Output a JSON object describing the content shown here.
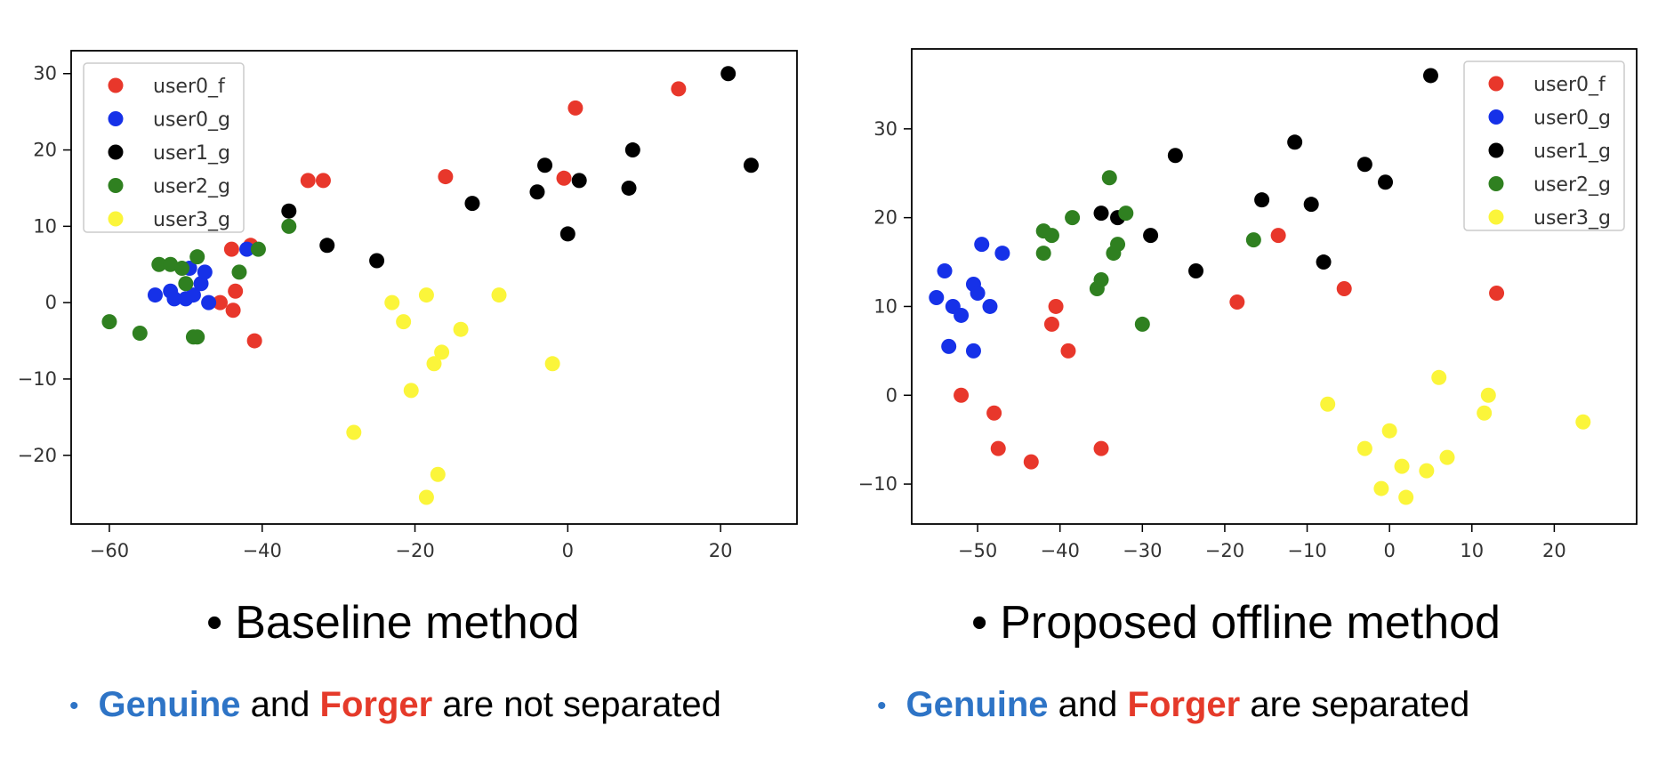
{
  "colors": {
    "user0_f": "#e8372b",
    "user0_g": "#1631e8",
    "user1_g": "#000000",
    "user2_g": "#2f8020",
    "user3_g": "#fbf53a",
    "genuine_text": "#2e74c6",
    "forger_text": "#e53a2a"
  },
  "chart_data": [
    {
      "type": "scatter",
      "title": "",
      "xlabel": "",
      "ylabel": "",
      "xlim": [
        -65,
        30
      ],
      "ylim": [
        -29,
        33
      ],
      "xticks": [
        -60,
        -40,
        -20,
        0,
        20
      ],
      "yticks": [
        -20,
        -10,
        0,
        10,
        20,
        30
      ],
      "legend": "top-left",
      "grid": false,
      "series": [
        {
          "name": "user0_f",
          "points": [
            [
              -44,
              7
            ],
            [
              -45.5,
              0
            ],
            [
              -43.5,
              1.5
            ],
            [
              -43.8,
              -1
            ],
            [
              -41,
              -5
            ],
            [
              -34,
              16
            ],
            [
              -32,
              16
            ],
            [
              -16,
              16.5
            ],
            [
              1,
              25.5
            ],
            [
              14.5,
              28
            ],
            [
              -0.5,
              16.3
            ],
            [
              -41.5,
              7.5
            ]
          ]
        },
        {
          "name": "user0_g",
          "points": [
            [
              -54,
              1
            ],
            [
              -52,
              1.5
            ],
            [
              -51.5,
              0.5
            ],
            [
              -50,
              0.5
            ],
            [
              -49.5,
              4.5
            ],
            [
              -49,
              1
            ],
            [
              -48,
              2.5
            ],
            [
              -47.5,
              4
            ],
            [
              -47,
              0
            ],
            [
              -42,
              7
            ]
          ]
        },
        {
          "name": "user1_g",
          "points": [
            [
              -36.5,
              12
            ],
            [
              -31.5,
              7.5
            ],
            [
              -25,
              5.5
            ],
            [
              -12.5,
              13
            ],
            [
              -4,
              14.5
            ],
            [
              -3,
              18
            ],
            [
              0,
              9
            ],
            [
              1.5,
              16
            ],
            [
              8,
              15
            ],
            [
              8.5,
              20
            ],
            [
              21,
              30
            ],
            [
              24,
              18
            ]
          ]
        },
        {
          "name": "user2_g",
          "points": [
            [
              -53.5,
              5
            ],
            [
              -52,
              5
            ],
            [
              -50.5,
              4.5
            ],
            [
              -50,
              2.5
            ],
            [
              -48.5,
              6
            ],
            [
              -48.5,
              -4.5
            ],
            [
              -49,
              -4.5
            ],
            [
              -60,
              -2.5
            ],
            [
              -56,
              -4
            ],
            [
              -43,
              4
            ],
            [
              -40.5,
              7
            ],
            [
              -36.5,
              10
            ]
          ]
        },
        {
          "name": "user3_g",
          "points": [
            [
              -23,
              0
            ],
            [
              -21.5,
              -2.5
            ],
            [
              -18.5,
              1
            ],
            [
              -20.5,
              -11.5
            ],
            [
              -17.5,
              -8
            ],
            [
              -16.5,
              -6.5
            ],
            [
              -14,
              -3.5
            ],
            [
              -9,
              1
            ],
            [
              -2,
              -8
            ],
            [
              -28,
              -17
            ],
            [
              -17,
              -22.5
            ],
            [
              -18.5,
              -25.5
            ]
          ]
        }
      ]
    },
    {
      "type": "scatter",
      "title": "",
      "xlabel": "",
      "ylabel": "",
      "xlim": [
        -58,
        30
      ],
      "ylim": [
        -14.5,
        39
      ],
      "xticks": [
        -50,
        -40,
        -30,
        -20,
        -10,
        0,
        10,
        20
      ],
      "yticks": [
        -10,
        0,
        10,
        20,
        30
      ],
      "legend": "top-right",
      "grid": false,
      "series": [
        {
          "name": "user0_f",
          "points": [
            [
              -52,
              0
            ],
            [
              -48,
              -2
            ],
            [
              -47.5,
              -6
            ],
            [
              -43.5,
              -7.5
            ],
            [
              -41,
              8
            ],
            [
              -40.5,
              10
            ],
            [
              -39,
              5
            ],
            [
              -35,
              -6
            ],
            [
              -18.5,
              10.5
            ],
            [
              -13.5,
              18
            ],
            [
              -5.5,
              12
            ],
            [
              13,
              11.5
            ]
          ]
        },
        {
          "name": "user0_g",
          "points": [
            [
              -55,
              11
            ],
            [
              -54,
              14
            ],
            [
              -53,
              10
            ],
            [
              -52,
              9
            ],
            [
              -50.5,
              12.5
            ],
            [
              -50,
              11.5
            ],
            [
              -49.5,
              17
            ],
            [
              -48.5,
              10
            ],
            [
              -47,
              16
            ],
            [
              -53.5,
              5.5
            ],
            [
              -50.5,
              5
            ]
          ]
        },
        {
          "name": "user1_g",
          "points": [
            [
              -35,
              20.5
            ],
            [
              -33,
              20
            ],
            [
              -29,
              18
            ],
            [
              -26,
              27
            ],
            [
              -23.5,
              14
            ],
            [
              -15.5,
              22
            ],
            [
              -11.5,
              28.5
            ],
            [
              -9.5,
              21.5
            ],
            [
              -8,
              15
            ],
            [
              -3,
              26
            ],
            [
              -0.5,
              24
            ],
            [
              5,
              36
            ]
          ]
        },
        {
          "name": "user2_g",
          "points": [
            [
              -42,
              18.5
            ],
            [
              -41,
              18
            ],
            [
              -38.5,
              20
            ],
            [
              -42,
              16
            ],
            [
              -35.5,
              12
            ],
            [
              -35,
              13
            ],
            [
              -34,
              24.5
            ],
            [
              -33.5,
              16
            ],
            [
              -33,
              17
            ],
            [
              -32,
              20.5
            ],
            [
              -30,
              8
            ],
            [
              -16.5,
              17.5
            ]
          ]
        },
        {
          "name": "user3_g",
          "points": [
            [
              -7.5,
              -1
            ],
            [
              -3,
              -6
            ],
            [
              0,
              -4
            ],
            [
              -1,
              -10.5
            ],
            [
              1.5,
              -8
            ],
            [
              2,
              -11.5
            ],
            [
              4.5,
              -8.5
            ],
            [
              6,
              2
            ],
            [
              7,
              -7
            ],
            [
              11.5,
              -2
            ],
            [
              12,
              0
            ],
            [
              23.5,
              -3
            ]
          ]
        }
      ]
    }
  ],
  "captions": {
    "left": {
      "title": "Baseline method",
      "w1": "Genuine",
      "w2": "and",
      "w3": "Forger",
      "w4": "are not separated"
    },
    "right": {
      "title": "Proposed offline method",
      "w1": "Genuine",
      "w2": "and",
      "w3": "Forger",
      "w4": "are separated"
    },
    "bullet": "•"
  }
}
